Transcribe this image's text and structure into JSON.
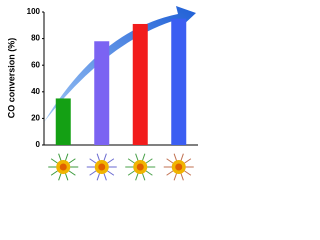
{
  "chart_data": {
    "type": "bar",
    "y_label": "CO conversion (%)",
    "categories": [
      null,
      null,
      null,
      null
    ],
    "values": [
      35,
      78,
      91,
      95
    ],
    "colors": [
      "#14a014",
      "#7b63f2",
      "#f21c1c",
      "#3b5ef2"
    ],
    "ylim": [
      0,
      100
    ],
    "yticks": [
      0,
      20,
      40,
      60,
      80,
      100
    ],
    "grid": false
  }
}
